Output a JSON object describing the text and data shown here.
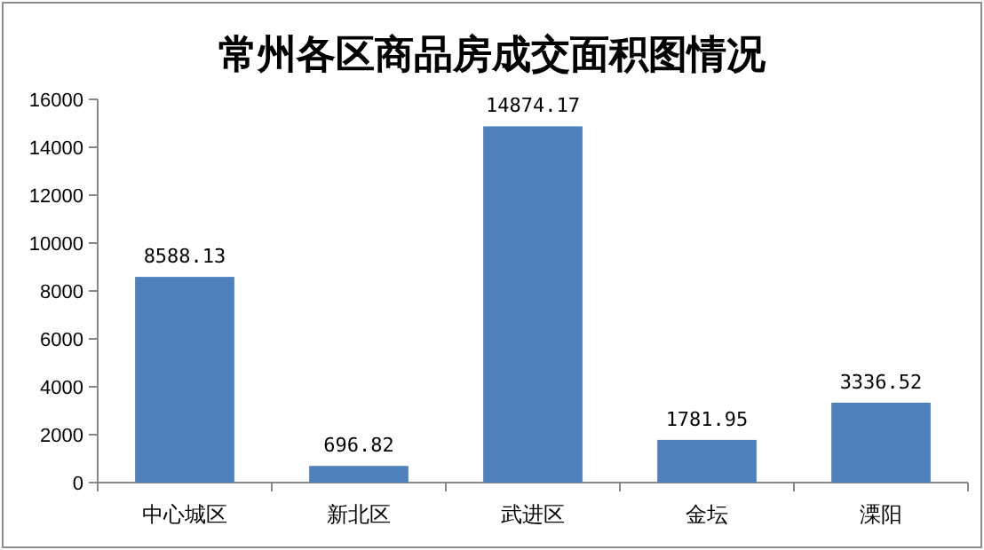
{
  "chart_data": {
    "type": "bar",
    "title": "常州各区商品房成交面积图情况",
    "categories": [
      "中心城区",
      "新北区",
      "武进区",
      "金坛",
      "溧阳"
    ],
    "values": [
      8588.13,
      696.82,
      14874.17,
      1781.95,
      3336.52
    ],
    "color": "#4f81bd",
    "ylim": [
      0,
      16000
    ],
    "yticks": [
      0,
      2000,
      4000,
      6000,
      8000,
      10000,
      12000,
      14000,
      16000
    ],
    "data_labels": true
  }
}
